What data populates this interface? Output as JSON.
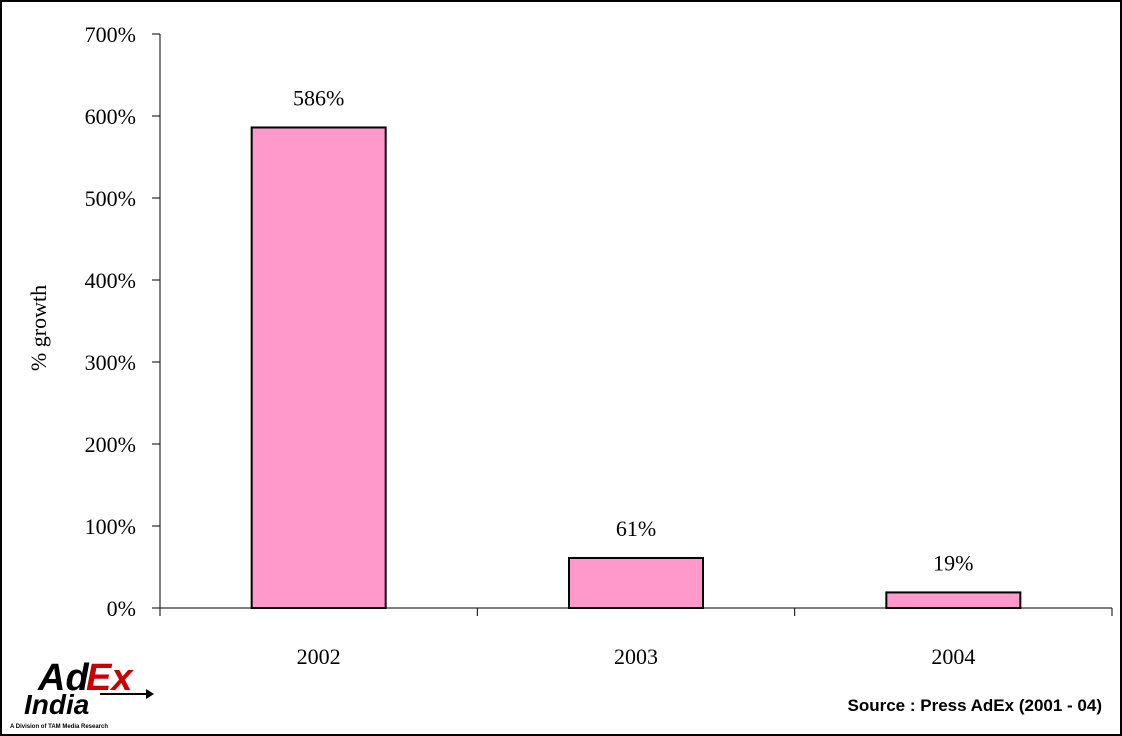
{
  "chart_data": {
    "type": "bar",
    "categories": [
      "2002",
      "2003",
      "2004"
    ],
    "values": [
      586,
      61,
      19
    ],
    "value_labels": [
      "586%",
      "61%",
      "19%"
    ],
    "title": "",
    "xlabel": "",
    "ylabel": "% growth",
    "ylim": [
      0,
      700
    ],
    "yticks": [
      0,
      100,
      200,
      300,
      400,
      500,
      600,
      700
    ],
    "ytick_labels": [
      "0%",
      "100%",
      "200%",
      "300%",
      "400%",
      "500%",
      "600%",
      "700%"
    ],
    "bar_color": "#ff99cc",
    "bar_edge_color": "#000000",
    "grid": false,
    "legend": "none"
  },
  "source": "Source : Press AdEx (2001 - 04)",
  "logo": {
    "line1_a": "Ad",
    "line1_b": "Ex",
    "line2": "India",
    "tagline": "A Division of TAM Media Research",
    "color_dark": "#000000",
    "color_accent": "#cc0000"
  }
}
